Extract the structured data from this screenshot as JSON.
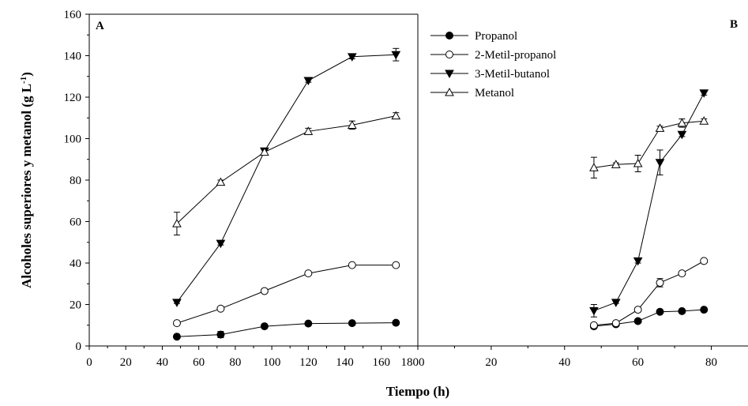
{
  "chart_data": [
    {
      "panel": "A",
      "type": "line",
      "xlabel": "Tiempo (h)",
      "ylabel": "Alcoholes superiores y metanol (g L-1)",
      "ylabel_main": "Alcoholes superiores y metanol (g L",
      "ylabel_sup": "-1",
      "ylabel_close": ")",
      "xlim": [
        0,
        180
      ],
      "ylim": [
        0,
        160
      ],
      "xticks": [
        "0",
        "20",
        "40",
        "60",
        "80",
        "100",
        "120",
        "140",
        "160",
        "180"
      ],
      "yticks": [
        "0",
        "20",
        "40",
        "60",
        "80",
        "100",
        "120",
        "140",
        "160"
      ],
      "x": [
        48,
        72,
        96,
        120,
        144,
        168
      ],
      "series": [
        {
          "name": "Propanol",
          "values": [
            4.5,
            5.5,
            9.5,
            10.8,
            11.0,
            11.2
          ],
          "errors": [
            0.6,
            1.5,
            0.5,
            0.5,
            0.5,
            0.5
          ]
        },
        {
          "name": "2-Metil-propanol",
          "values": [
            11.0,
            18.0,
            26.5,
            35.0,
            39.0,
            39.0
          ],
          "errors": [
            0.5,
            0.5,
            0.8,
            0.5,
            0.5,
            0.5
          ]
        },
        {
          "name": "3-Metil-butanol",
          "values": [
            21.0,
            49.5,
            94.0,
            128.0,
            139.5,
            140.5
          ],
          "errors": [
            0.5,
            0.8,
            1.0,
            0.8,
            1.0,
            3.0
          ]
        },
        {
          "name": "Metanol",
          "values": [
            59.0,
            79.0,
            93.5,
            103.5,
            106.5,
            111.0
          ],
          "errors": [
            5.5,
            1.0,
            1.0,
            1.5,
            2.0,
            1.5
          ]
        }
      ]
    },
    {
      "panel": "B",
      "type": "line",
      "xlabel": "Tiempo (h)",
      "xlim": [
        0,
        90
      ],
      "ylim": [
        0,
        160
      ],
      "xticks": [
        "0",
        "20",
        "40",
        "60",
        "80"
      ],
      "x": [
        48,
        54,
        60,
        66,
        72,
        78
      ],
      "series": [
        {
          "name": "Propanol",
          "values": [
            9.5,
            10.5,
            12.0,
            16.5,
            16.8,
            17.5
          ],
          "errors": [
            1.0,
            0.5,
            0.5,
            0.5,
            0.5,
            0.5
          ]
        },
        {
          "name": "2-Metil-propanol",
          "values": [
            10.0,
            11.0,
            17.5,
            30.5,
            35.0,
            41.0
          ],
          "errors": [
            1.0,
            0.5,
            0.5,
            2.0,
            0.5,
            0.5
          ]
        },
        {
          "name": "3-Metil-butanol",
          "values": [
            17.0,
            21.0,
            41.0,
            88.5,
            102.0,
            122.0
          ],
          "errors": [
            3.0,
            0.5,
            1.0,
            6.0,
            1.0,
            1.0
          ]
        },
        {
          "name": "Metanol",
          "values": [
            86.0,
            87.5,
            88.0,
            105.0,
            107.5,
            108.5
          ],
          "errors": [
            5.0,
            0.8,
            4.0,
            1.0,
            2.0,
            1.0
          ]
        }
      ]
    }
  ],
  "legend_entries": [
    "Propanol",
    "2-Metil-propanol",
    "3-Metil-butanol",
    "Metanol"
  ]
}
